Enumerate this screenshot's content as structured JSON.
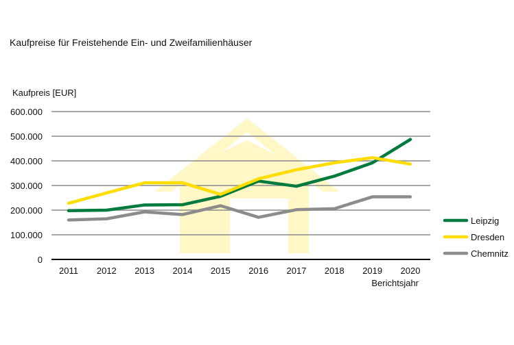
{
  "chart_data": {
    "type": "line",
    "title": "Kaufpreise für Freistehende Ein- und Zweifamilienhäuser",
    "ylabel": "Kaufpreis [EUR]",
    "xlabel": "Berichtsjahr",
    "ylim": [
      0,
      600000
    ],
    "yticks": [
      0,
      100000,
      200000,
      300000,
      400000,
      500000,
      600000
    ],
    "ytick_labels": [
      "0",
      "100.000",
      "200.000",
      "300.000",
      "400.000",
      "500.000",
      "600.000"
    ],
    "categories": [
      "2011",
      "2012",
      "2013",
      "2014",
      "2015",
      "2016",
      "2017",
      "2018",
      "2019",
      "2020"
    ],
    "grid": "horizontal",
    "legend_position": "right",
    "series": [
      {
        "name": "Leipzig",
        "color": "#007a3d",
        "values": [
          198000,
          200000,
          221000,
          222000,
          256000,
          318000,
          297000,
          338000,
          392000,
          487000
        ]
      },
      {
        "name": "Dresden",
        "color": "#ffdd00",
        "values": [
          228000,
          270000,
          311000,
          311000,
          264000,
          327000,
          364000,
          392000,
          413000,
          387000
        ]
      },
      {
        "name": "Chemnitz",
        "color": "#8c8c8c",
        "values": [
          160000,
          165000,
          193000,
          182000,
          218000,
          171000,
          202000,
          206000,
          254000,
          254000
        ]
      }
    ],
    "watermark": "house-icon"
  }
}
